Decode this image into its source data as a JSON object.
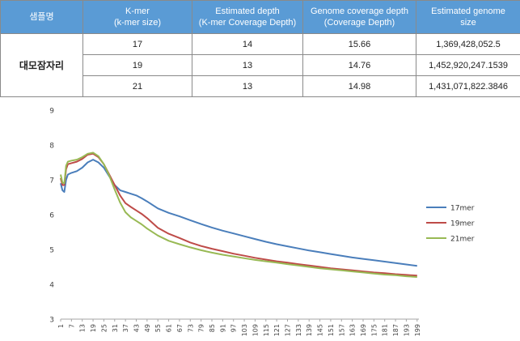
{
  "table": {
    "headers": [
      [
        "샘플명"
      ],
      [
        "K-mer",
        "(k-mer size)"
      ],
      [
        "Estimated depth",
        "(K-mer Coverage Depth)"
      ],
      [
        "Genome coverage depth",
        "(Coverage Depth)"
      ],
      [
        "Estimated genome",
        "size"
      ]
    ],
    "sample_name": "대모잠자리",
    "rows": [
      {
        "kmer": "17",
        "est_depth": "14",
        "cov_depth": "15.66",
        "genome_size": "1,369,428,052.5"
      },
      {
        "kmer": "19",
        "est_depth": "13",
        "cov_depth": "14.76",
        "genome_size": "1,452,920,247.1539"
      },
      {
        "kmer": "21",
        "est_depth": "13",
        "cov_depth": "14.98",
        "genome_size": "1,431,071,822.3846"
      }
    ]
  },
  "chart_data": {
    "type": "line",
    "title": "",
    "xlabel": "",
    "ylabel": "",
    "xlim": [
      1,
      200
    ],
    "ylim": [
      3,
      9
    ],
    "yticks": [
      3,
      4,
      5,
      6,
      7,
      8,
      9
    ],
    "xtick_start": 1,
    "xtick_step": 6,
    "xtick_end": 199,
    "grid": false,
    "legend_position": "right",
    "series": [
      {
        "name": "17mer",
        "color": "#4a7ebb",
        "points": [
          [
            1,
            6.9
          ],
          [
            2,
            6.7
          ],
          [
            3,
            6.65
          ],
          [
            4,
            7.0
          ],
          [
            5,
            7.15
          ],
          [
            7,
            7.2
          ],
          [
            10,
            7.25
          ],
          [
            13,
            7.35
          ],
          [
            16,
            7.5
          ],
          [
            19,
            7.58
          ],
          [
            22,
            7.5
          ],
          [
            25,
            7.35
          ],
          [
            28,
            7.1
          ],
          [
            31,
            6.85
          ],
          [
            34,
            6.7
          ],
          [
            37,
            6.65
          ],
          [
            40,
            6.6
          ],
          [
            43,
            6.55
          ],
          [
            46,
            6.47
          ],
          [
            49,
            6.38
          ],
          [
            55,
            6.18
          ],
          [
            61,
            6.05
          ],
          [
            67,
            5.95
          ],
          [
            73,
            5.84
          ],
          [
            79,
            5.73
          ],
          [
            85,
            5.63
          ],
          [
            91,
            5.54
          ],
          [
            97,
            5.46
          ],
          [
            103,
            5.38
          ],
          [
            109,
            5.3
          ],
          [
            115,
            5.22
          ],
          [
            121,
            5.15
          ],
          [
            127,
            5.09
          ],
          [
            133,
            5.03
          ],
          [
            139,
            4.97
          ],
          [
            145,
            4.92
          ],
          [
            151,
            4.87
          ],
          [
            157,
            4.82
          ],
          [
            163,
            4.77
          ],
          [
            169,
            4.73
          ],
          [
            175,
            4.69
          ],
          [
            181,
            4.65
          ],
          [
            187,
            4.61
          ],
          [
            193,
            4.57
          ],
          [
            199,
            4.53
          ]
        ]
      },
      {
        "name": "19mer",
        "color": "#be4b48",
        "points": [
          [
            1,
            7.05
          ],
          [
            2,
            6.85
          ],
          [
            3,
            6.85
          ],
          [
            4,
            7.3
          ],
          [
            5,
            7.45
          ],
          [
            7,
            7.48
          ],
          [
            10,
            7.52
          ],
          [
            13,
            7.6
          ],
          [
            16,
            7.72
          ],
          [
            19,
            7.75
          ],
          [
            22,
            7.65
          ],
          [
            25,
            7.45
          ],
          [
            28,
            7.15
          ],
          [
            31,
            6.85
          ],
          [
            34,
            6.55
          ],
          [
            37,
            6.33
          ],
          [
            40,
            6.22
          ],
          [
            43,
            6.12
          ],
          [
            46,
            6.02
          ],
          [
            49,
            5.9
          ],
          [
            55,
            5.62
          ],
          [
            61,
            5.45
          ],
          [
            67,
            5.33
          ],
          [
            73,
            5.2
          ],
          [
            79,
            5.1
          ],
          [
            85,
            5.02
          ],
          [
            91,
            4.95
          ],
          [
            97,
            4.88
          ],
          [
            103,
            4.82
          ],
          [
            109,
            4.76
          ],
          [
            115,
            4.71
          ],
          [
            121,
            4.66
          ],
          [
            127,
            4.62
          ],
          [
            133,
            4.58
          ],
          [
            139,
            4.54
          ],
          [
            145,
            4.5
          ],
          [
            151,
            4.46
          ],
          [
            157,
            4.43
          ],
          [
            163,
            4.4
          ],
          [
            169,
            4.37
          ],
          [
            175,
            4.34
          ],
          [
            181,
            4.32
          ],
          [
            187,
            4.29
          ],
          [
            193,
            4.27
          ],
          [
            199,
            4.25
          ]
        ]
      },
      {
        "name": "21mer",
        "color": "#98b954",
        "points": [
          [
            1,
            7.15
          ],
          [
            2,
            6.92
          ],
          [
            3,
            6.9
          ],
          [
            4,
            7.4
          ],
          [
            5,
            7.52
          ],
          [
            7,
            7.55
          ],
          [
            10,
            7.58
          ],
          [
            13,
            7.65
          ],
          [
            16,
            7.75
          ],
          [
            19,
            7.78
          ],
          [
            22,
            7.68
          ],
          [
            25,
            7.45
          ],
          [
            28,
            7.12
          ],
          [
            31,
            6.72
          ],
          [
            34,
            6.35
          ],
          [
            37,
            6.07
          ],
          [
            40,
            5.92
          ],
          [
            43,
            5.82
          ],
          [
            46,
            5.72
          ],
          [
            49,
            5.6
          ],
          [
            55,
            5.4
          ],
          [
            61,
            5.25
          ],
          [
            67,
            5.15
          ],
          [
            73,
            5.06
          ],
          [
            79,
            4.98
          ],
          [
            85,
            4.91
          ],
          [
            91,
            4.85
          ],
          [
            97,
            4.8
          ],
          [
            103,
            4.75
          ],
          [
            109,
            4.7
          ],
          [
            115,
            4.66
          ],
          [
            121,
            4.62
          ],
          [
            127,
            4.58
          ],
          [
            133,
            4.54
          ],
          [
            139,
            4.5
          ],
          [
            145,
            4.46
          ],
          [
            151,
            4.43
          ],
          [
            157,
            4.4
          ],
          [
            163,
            4.37
          ],
          [
            169,
            4.34
          ],
          [
            175,
            4.31
          ],
          [
            181,
            4.28
          ],
          [
            187,
            4.26
          ],
          [
            193,
            4.23
          ],
          [
            199,
            4.21
          ]
        ]
      }
    ]
  }
}
